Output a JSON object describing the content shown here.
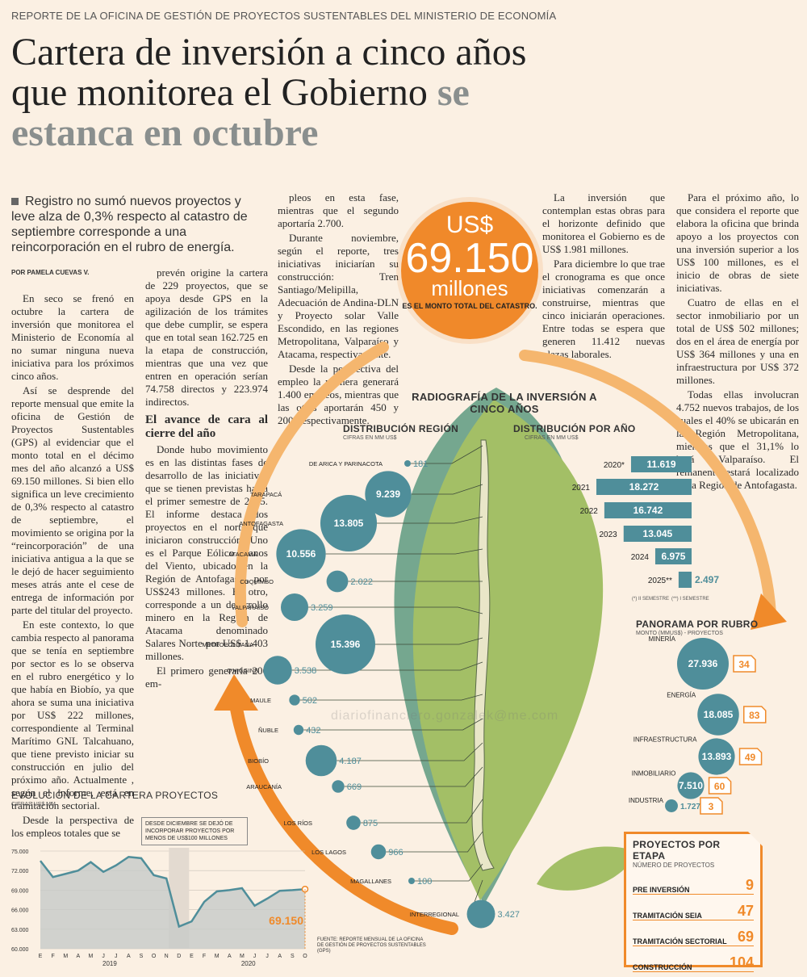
{
  "kicker": "REPORTE DE LA OFICINA DE GESTIÓN DE PROYECTOS SUSTENTABLES DEL MINISTERIO DE ECONOMÍA",
  "title_a": "Cartera de inversión a cinco años",
  "title_b": "que monitorea el Gobierno",
  "title_c": "se",
  "title_d": "estanca en octubre",
  "lead": "Registro no sumó nuevos proyectos y leve alza de 0,3% respecto al catastro de septiembre corresponde a una reincorporación en el rubro de energía.",
  "byline": "POR PAMELA CUEVAS V.",
  "col1": [
    "En seco se frenó en octubre la cartera de inversión que monitorea el Ministerio de Economía al no sumar ninguna nueva iniciativa para los próximos cinco años.",
    "Así se desprende del reporte mensual que emite la oficina de Gestión de Proyectos Sustentables (GPS) al evidenciar que el monto total en el décimo mes del año alcanzó a US$ 69.150 millones. Si bien ello significa un leve crecimiento de 0,3% respecto al catastro de septiembre, el movimiento se origina por la “reincorporación” de una iniciativa antigua a la que se le dejó de hacer seguimiento meses atrás ante el cese de entrega de información por parte del titular del proyecto.",
    "En este contexto, lo que cambia respecto al panorama que se tenía en septiembre por sector es lo se observa en el rubro energético y lo que había en Biobío, ya que ahora se suma una iniciativa por US$ 222 millones, correspondiente al Terminal Marítimo GNL Talcahuano, que tiene previsto iniciar su construcción en julio del próximo año. Actualmente , según el informe, está en tramitación sectorial.",
    "Desde la perspectiva de los empleos totales que se"
  ],
  "col2a": [
    "prevén origine la cartera de 229 proyectos, que se apoya desde GPS en la agilización de los trámites que debe cumplir, se espera que en total sean 162.725 en la etapa de construcción, mientras que una vez que entren en operación serían 74.758 directos y 223.974 indirectos."
  ],
  "col2_subhead": "El avance de cara al cierre del año",
  "col2b": [
    "Donde hubo movimiento es en las distintas fases de desarrollo de las iniciativas que se tienen previstas hasta el primer semestre de 2025. El informe destaca dos proyectos en el norte que iniciaron construcción. Uno es el Parque Eólico Llanos del Viento, ubicado en la Región de Antofagasta, por US$243 millones. El otro, corresponde a un desarrollo minero en la Región de Atacama denominado Salares Norte por US$ 1.403 millones.",
    "El primero generaría 200 em-"
  ],
  "col3": [
    "pleos en esta fase, mientras que el segundo aportaría 2.700.",
    "Durante noviembre, según el reporte, tres iniciativas iniciarían su construcción: Tren Santiago/Melipilla, Adecuación de Andina-DLN y Proyecto solar Valle Escondido, en las regiones Metropolitana, Valparaíso y Atacama, respectivamente.",
    "Desde la perspectiva del empleo la primera generará 1.400 empleos, mientras que las otras aportarán 450 y 200, respectivamente."
  ],
  "col4": [
    "La inversión que contemplan estas obras para el horizonte definido que monitorea el Gobierno es de US$ 1.981 millones.",
    "Para diciembre lo que trae el cronograma es que once iniciativas comenzarán a construirse, mientras que cinco iniciarán operaciones. Entre todas se espera que generen 11.412 nuevas plazas laborales."
  ],
  "col5": [
    "Para el próximo año, lo que considera el reporte que elabora la oficina que brinda apoyo a los proyectos con una inversión superior a los US$ 100 millones, es el inicio de obras de siete iniciativas.",
    "Cuatro de ellas en el sector inmobiliario por un total de US$ 502 millones; dos en el área de energía por US$ 364 millones y una en infraestructura por US$ 372 millones.",
    "Todas ellas involucran 4.752 nuevos trabajos, de los cuales el 40% se ubicarán en la Región Metropolitana, mientras que el 31,1% lo hará Valparaíso. El remanente estará localizado en la Región de Antofagasta."
  ],
  "total": {
    "currency": "US$",
    "value": "69.150",
    "unit": "millones",
    "caption": "ES EL MONTO TOTAL DEL CATASTRO."
  },
  "radiografia_title": "RADIOGRAFÍA DE LA INVERSIÓN A CINCO AÑOS",
  "watermark": "diariofinanciero.gonzalek@me.com",
  "colors": {
    "orange": "#f0892a",
    "teal": "#4f8e9a",
    "green": "#9bb85e",
    "grey": "#8a8f8e"
  },
  "chart_data": [
    {
      "type": "bubble",
      "title": "DISTRIBUCIÓN REGIÓN",
      "subtitle": "CIFRAS EN MM US$",
      "categories": [
        "DE ARICA Y PARINACOTA",
        "TARAPACÁ",
        "ANTOFAGASTA",
        "ATACAMA",
        "COQUIMBO",
        "VALPARAÍSO",
        "METROPOLITANA",
        "O'HIGGINS",
        "MAULE",
        "ÑUBLE",
        "BIOBÍO",
        "ARAUCANÍA",
        "LOS RÍOS",
        "LOS LAGOS",
        "MAGALLANES",
        "INTERREGIONAL"
      ],
      "values": [
        181,
        9239,
        13805,
        10556,
        2022,
        3259,
        15396,
        3538,
        502,
        432,
        4187,
        669,
        875,
        966,
        100,
        3427
      ],
      "labels": [
        "181",
        "9.239",
        "13.805",
        "10.556",
        "2.022",
        "3.259",
        "15.396",
        "3.538",
        "502",
        "432",
        "4.187",
        "669",
        "875",
        "966",
        "100",
        "3.427"
      ]
    },
    {
      "type": "bar",
      "title": "DISTRIBUCIÓN POR AÑO",
      "subtitle": "CIFRAS EN MM US$",
      "categories": [
        "2020*",
        "2021",
        "2022",
        "2023",
        "2024",
        "2025**"
      ],
      "values": [
        11619,
        18272,
        16742,
        13045,
        6975,
        2497
      ],
      "labels": [
        "11.619",
        "18.272",
        "16.742",
        "13.045",
        "6.975",
        "2.497"
      ],
      "note_a": "(*) II SEMESTRE",
      "note_b": "(**) I SEMESTRE"
    },
    {
      "type": "bubble",
      "title": "PANORAMA POR RUBRO",
      "subtitle": "MONTO (MMUS$) - PROYECTOS",
      "categories": [
        "MINERÍA",
        "ENERGÍA",
        "INFRAESTRUCTURA",
        "INMOBILIARIO",
        "INDUSTRIA"
      ],
      "values": [
        27936,
        18085,
        13893,
        7510,
        1727
      ],
      "labels": [
        "27.936",
        "18.085",
        "13.893",
        "7.510",
        "1.727"
      ],
      "projects": [
        34,
        83,
        49,
        60,
        3
      ]
    },
    {
      "type": "table",
      "title": "PROYECTOS POR ETAPA",
      "subtitle": "NÚMERO DE PROYECTOS",
      "categories": [
        "PRE INVERSIÓN",
        "TRAMITACIÓN SEIA",
        "TRAMITACIÓN SECTORIAL",
        "CONSTRUCCIÓN"
      ],
      "values": [
        9,
        47,
        69,
        104
      ]
    },
    {
      "type": "area",
      "title": "EVOLUCIÓN DE LA CARTERA PROYECTOS",
      "subtitle": "CIFRAS US$ MM",
      "x": [
        "E",
        "F",
        "M",
        "A",
        "M",
        "J",
        "J",
        "A",
        "S",
        "O",
        "N",
        "D",
        "E",
        "F",
        "M",
        "A",
        "M",
        "J",
        "J",
        "A",
        "S",
        "O"
      ],
      "years": [
        "2019",
        "2020"
      ],
      "values": [
        73500,
        71000,
        71500,
        72000,
        73300,
        71800,
        72800,
        74100,
        73900,
        71300,
        70800,
        63400,
        64200,
        67200,
        68800,
        69000,
        69300,
        66600,
        67700,
        68900,
        69000,
        69150
      ],
      "yticks": [
        "75.000",
        "72.000",
        "69.000",
        "66.000",
        "63.000",
        "60.000"
      ],
      "ylim": [
        60000,
        75000
      ],
      "annotation": "DESDE DICIEMBRE SE DEJÓ DE INCORPORAR PROYECTOS POR MENOS DE US$100 MILLONES",
      "last_label": "69.150"
    }
  ],
  "source": "FUENTE: REPORTE MENSUAL DE LA OFICINA DE GESTIÓN DE PROYECTOS SUSTENTABLES (GPS)"
}
